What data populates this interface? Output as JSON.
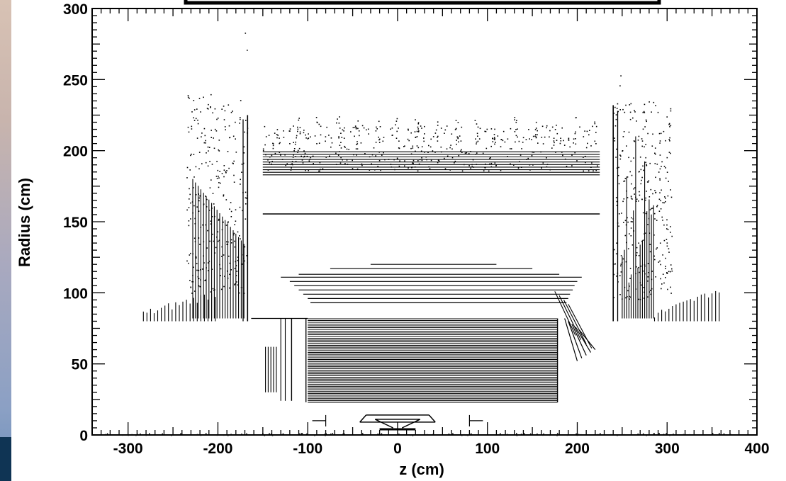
{
  "colors": {
    "background": "#ffffff",
    "ink": "#000000",
    "strip_top": "#d8c2b4",
    "strip_bottom": "#0f3454"
  },
  "chart_data": {
    "type": "scatter",
    "title": "",
    "xlabel": "z (cm)",
    "ylabel": "Radius (cm)",
    "xlim": [
      -340,
      400
    ],
    "ylim": [
      0,
      300
    ],
    "x_ticks": [
      -300,
      -200,
      -100,
      0,
      100,
      200,
      300,
      400
    ],
    "y_ticks": [
      0,
      50,
      100,
      150,
      200,
      250,
      300
    ],
    "grid": false,
    "legend": "none",
    "regions": [
      {
        "name": "pixel-detector",
        "z": [
          -40,
          40
        ],
        "r": [
          4,
          15
        ]
      },
      {
        "name": "silicon-strip-inner-barrel",
        "z": [
          -100,
          178
        ],
        "r": [
          23,
          82
        ]
      },
      {
        "name": "silicon-strip-inner-forward",
        "z": [
          -145,
          -110
        ],
        "r": [
          25,
          62
        ]
      },
      {
        "name": "silicon-strip-outer",
        "z": [
          -130,
          205
        ],
        "r": [
          88,
          120
        ]
      },
      {
        "name": "tracker-mid-layer",
        "z": [
          -150,
          225
        ],
        "r": [
          155,
          156
        ]
      },
      {
        "name": "outer-barrel",
        "z": [
          -150,
          225
        ],
        "r": [
          183,
          217
        ]
      },
      {
        "name": "endcap-negative",
        "z": [
          -283,
          -167
        ],
        "r": [
          80,
          240
        ]
      },
      {
        "name": "endcap-positive",
        "z": [
          240,
          360
        ],
        "r": [
          80,
          240
        ]
      }
    ]
  }
}
